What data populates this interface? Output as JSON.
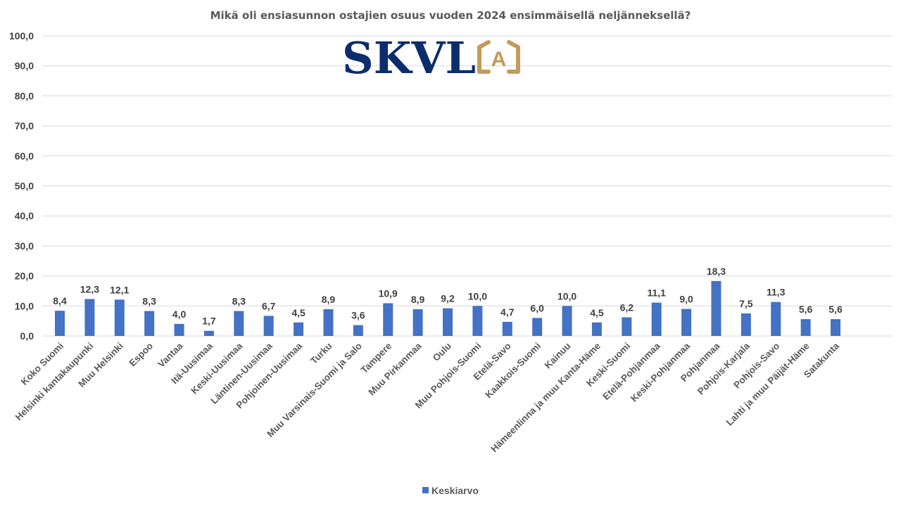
{
  "logo": {
    "text": "SKVL",
    "badge_letter": "A",
    "colors": {
      "text": "#0b2d6b",
      "badge": "#c39a5a"
    }
  },
  "chart_data": {
    "type": "bar",
    "title": "Mikä oli ensiasunnon ostajien osuus vuoden 2024 ensimmäisellä neljänneksellä?",
    "xlabel": "",
    "ylabel": "",
    "ylim": [
      0,
      100
    ],
    "yticks": [
      0,
      10,
      20,
      30,
      40,
      50,
      60,
      70,
      80,
      90,
      100
    ],
    "ytick_labels": [
      "0,0",
      "10,0",
      "20,0",
      "30,0",
      "40,0",
      "50,0",
      "60,0",
      "70,0",
      "80,0",
      "90,0",
      "100,0"
    ],
    "grid": true,
    "legend_position": "bottom",
    "categories": [
      "Koko Suomi",
      "Helsinki kantakaupunki",
      "Muu Helsinki",
      "Espoo",
      "Vantaa",
      "Itä-Uusimaa",
      "Keski-Uusimaa",
      "Läntinen-Uusimaa",
      "Pohjoinen-Uusimaa",
      "Turku",
      "Muu Varsinais-Suomi ja Salo",
      "Tampere",
      "Muu Pirkanmaa",
      "Oulu",
      "Muu Pohjois-Suomi",
      "Etelä-Savo",
      "Kaakkois-Suomi",
      "Kainuu",
      "Hämeenlinna ja muu Kanta-Häme",
      "Keski-Suomi",
      "Etelä-Pohjanmaa",
      "Keski-Pohjanmaa",
      "Pohjanmaa",
      "Pohjois-Karjala",
      "Pohjois-Savo",
      "Lahti ja muu Päijät-Häme",
      "Satakunta"
    ],
    "series": [
      {
        "name": "Keskiarvo",
        "color": "#4472c4",
        "values": [
          8.4,
          12.3,
          12.1,
          8.3,
          4.0,
          1.7,
          8.3,
          6.7,
          4.5,
          8.9,
          3.6,
          10.9,
          8.9,
          9.2,
          10.0,
          4.7,
          6.0,
          10.0,
          4.5,
          6.2,
          11.1,
          9.0,
          18.3,
          7.5,
          11.3,
          5.6,
          5.6
        ],
        "labels": [
          "8,4",
          "12,3",
          "12,1",
          "8,3",
          "4,0",
          "1,7",
          "8,3",
          "6,7",
          "4,5",
          "8,9",
          "3,6",
          "10,9",
          "8,9",
          "9,2",
          "10,0",
          "4,7",
          "6,0",
          "10,0",
          "4,5",
          "6,2",
          "11,1",
          "9,0",
          "18,3",
          "7,5",
          "11,3",
          "5,6",
          "5,6"
        ]
      }
    ]
  }
}
